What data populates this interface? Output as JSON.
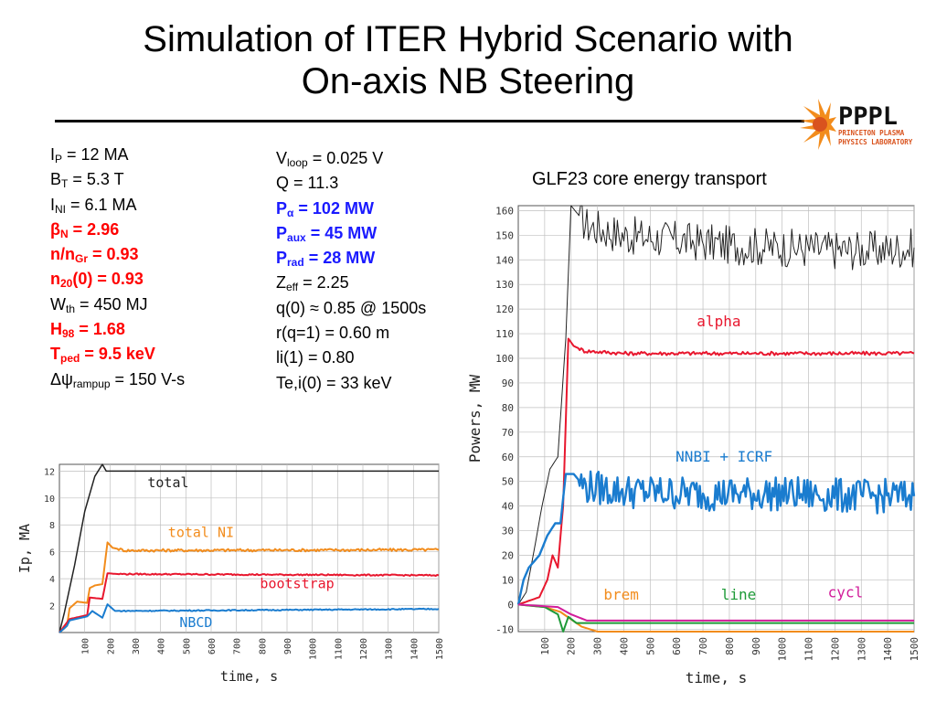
{
  "slide": {
    "title_line1": "Simulation of ITER Hybrid Scenario with",
    "title_line2": "On-axis NB Steering",
    "logo": {
      "text": "PPPL",
      "sub1": "PRINCETON PLASMA",
      "sub2": "PHYSICS LABORATORY"
    }
  },
  "params_left": [
    {
      "sym": "I",
      "sub": "P",
      "rest": " = 12 MA",
      "style": "normal"
    },
    {
      "sym": "B",
      "sub": "T",
      "rest": " = 5.3 T",
      "style": "normal"
    },
    {
      "sym": "I",
      "sub": "NI",
      "rest": " = 6.1 MA",
      "style": "normal"
    },
    {
      "sym": "β",
      "sub": "N",
      "rest": " = 2.96",
      "style": "red"
    },
    {
      "sym": "n/n",
      "sub": "Gr",
      "rest": " = 0.93",
      "style": "red"
    },
    {
      "sym": "n",
      "sub": "20",
      "rest": "(0) = 0.93",
      "style": "red"
    },
    {
      "sym": "W",
      "sub": "th",
      "rest": " = 450 MJ",
      "style": "normal"
    },
    {
      "sym": "H",
      "sub": "98",
      "rest": " = 1.68",
      "style": "red"
    },
    {
      "sym": "T",
      "sub": "ped",
      "rest": " = 9.5 keV",
      "style": "red"
    },
    {
      "sym": "Δψ",
      "sub": "rampup",
      "rest": " = 150 V-s",
      "style": "normal"
    }
  ],
  "params_right": [
    {
      "sym": "V",
      "sub": "loop",
      "rest": " = 0.025 V",
      "style": "normal"
    },
    {
      "sym": "Q = 11.3",
      "sub": "",
      "rest": "",
      "style": "normal"
    },
    {
      "sym": "P",
      "sub": "α",
      "rest": " = 102 MW",
      "style": "blue"
    },
    {
      "sym": "P",
      "sub": "aux",
      "rest": " = 45 MW",
      "style": "blue"
    },
    {
      "sym": "P",
      "sub": "rad",
      "rest": " = 28 MW",
      "style": "blue"
    },
    {
      "sym": "Z",
      "sub": "eff",
      "rest": " = 2.25",
      "style": "normal"
    },
    {
      "sym": "q(0) ≈ 0.85 @ 1500s",
      "sub": "",
      "rest": "",
      "style": "normal"
    },
    {
      "sym": "r(q=1) = 0.60 m",
      "sub": "",
      "rest": "",
      "style": "normal"
    },
    {
      "sym": "li(1) = 0.80",
      "sub": "",
      "rest": "",
      "style": "normal"
    },
    {
      "sym": "Te,i(0) = 33 keV",
      "sub": "",
      "rest": "",
      "style": "normal"
    }
  ],
  "colors": {
    "black": "#222222",
    "orange": "#f28c1c",
    "red": "#e8172e",
    "blue": "#1a7ccf",
    "green": "#1e9a38",
    "magenta": "#d21c9a",
    "grid": "#bfbfbf"
  },
  "chart_data": [
    {
      "type": "line",
      "title": "",
      "xlabel": "time, s",
      "ylabel": "Ip, MA",
      "xlim": [
        0,
        1500
      ],
      "ylim": [
        0,
        12.5
      ],
      "xticks": [
        100,
        200,
        300,
        400,
        500,
        600,
        700,
        800,
        900,
        1000,
        1100,
        1200,
        1300,
        1400,
        1500
      ],
      "yticks": [
        2,
        4,
        6,
        8,
        10,
        12
      ],
      "tick_labels_x": [
        "100",
        "200",
        "300",
        "400",
        "500",
        "600",
        "700",
        "800",
        "900",
        "1000",
        "1100",
        "1200",
        "1300",
        "1400",
        "1500"
      ],
      "tick_labels_y": [
        "2",
        "4",
        "6",
        "8",
        "10",
        "12"
      ],
      "series": [
        {
          "name": "total",
          "color": "#222222",
          "label_pos": [
            430,
            10.8
          ],
          "points": [
            [
              0,
              0
            ],
            [
              20,
              1.5
            ],
            [
              60,
              5
            ],
            [
              100,
              9
            ],
            [
              140,
              11.6
            ],
            [
              170,
              12.5
            ],
            [
              185,
              12.0
            ],
            [
              200,
              12.0
            ],
            [
              1500,
              12.0
            ]
          ]
        },
        {
          "name": "total NI",
          "color": "#f28c1c",
          "label_pos": [
            560,
            7.1
          ],
          "points": [
            [
              0,
              0
            ],
            [
              30,
              0.5
            ],
            [
              40,
              1.8
            ],
            [
              70,
              2.3
            ],
            [
              110,
              2.2
            ],
            [
              120,
              3.3
            ],
            [
              140,
              3.5
            ],
            [
              170,
              3.6
            ],
            [
              190,
              6.7
            ],
            [
              210,
              6.3
            ],
            [
              260,
              6.1
            ],
            [
              1500,
              6.15
            ]
          ]
        },
        {
          "name": "bootstrap",
          "color": "#e8172e",
          "label_pos": [
            940,
            3.3
          ],
          "points": [
            [
              0,
              0
            ],
            [
              40,
              1.0
            ],
            [
              110,
              1.3
            ],
            [
              120,
              2.6
            ],
            [
              170,
              2.5
            ],
            [
              190,
              4.4
            ],
            [
              230,
              4.35
            ],
            [
              1500,
              4.25
            ]
          ]
        },
        {
          "name": "NBCD",
          "color": "#1a7ccf",
          "label_pos": [
            540,
            0.4
          ],
          "points": [
            [
              0,
              0
            ],
            [
              30,
              0.5
            ],
            [
              40,
              0.9
            ],
            [
              110,
              1.2
            ],
            [
              130,
              1.6
            ],
            [
              170,
              1.1
            ],
            [
              190,
              2.1
            ],
            [
              220,
              1.6
            ],
            [
              1500,
              1.75
            ]
          ]
        }
      ]
    },
    {
      "type": "line",
      "title": "GLF23 core energy transport",
      "xlabel": "time, s",
      "ylabel": "Powers, MW",
      "xlim": [
        0,
        1500
      ],
      "ylim": [
        -11,
        162
      ],
      "xticks": [
        100,
        200,
        300,
        400,
        500,
        600,
        700,
        800,
        900,
        1000,
        1100,
        1200,
        1300,
        1400,
        1500
      ],
      "yticks": [
        -10,
        0,
        10,
        20,
        30,
        40,
        50,
        60,
        70,
        80,
        90,
        100,
        110,
        120,
        130,
        140,
        150,
        160
      ],
      "tick_labels_x": [
        "100",
        "200",
        "300",
        "400",
        "500",
        "600",
        "700",
        "800",
        "900",
        "1000",
        "1100",
        "1200",
        "1300",
        "1400",
        "1500"
      ],
      "tick_labels_y": [
        "-10",
        "0",
        "10",
        "20",
        "30",
        "40",
        "50",
        "60",
        "70",
        "80",
        "90",
        "100",
        "110",
        "120",
        "130",
        "140",
        "150",
        "160"
      ],
      "series": [
        {
          "name": "total",
          "color": "#222222",
          "label_pos": null,
          "points": [
            [
              0,
              0
            ],
            [
              30,
              5
            ],
            [
              60,
              22
            ],
            [
              90,
              40
            ],
            [
              120,
              55
            ],
            [
              150,
              60
            ],
            [
              180,
              108
            ],
            [
              200,
              162
            ],
            [
              230,
              158
            ],
            [
              260,
              154
            ],
            [
              400,
              150
            ],
            [
              600,
              148
            ],
            [
              800,
              146
            ],
            [
              1000,
              145
            ],
            [
              1200,
              144
            ],
            [
              1400,
              144
            ],
            [
              1500,
              145
            ]
          ]
        },
        {
          "name": "alpha",
          "color": "#e8172e",
          "label_pos": [
            760,
            113
          ],
          "points": [
            [
              0,
              0
            ],
            [
              80,
              3
            ],
            [
              110,
              10
            ],
            [
              130,
              20
            ],
            [
              150,
              15
            ],
            [
              170,
              40
            ],
            [
              190,
              108
            ],
            [
              210,
              105
            ],
            [
              250,
              103
            ],
            [
              400,
              102
            ],
            [
              1500,
              102
            ]
          ]
        },
        {
          "name": "NNBI + ICRF",
          "color": "#1a7ccf",
          "label_pos": [
            780,
            58
          ],
          "points": [
            [
              0,
              0
            ],
            [
              20,
              10
            ],
            [
              40,
              15
            ],
            [
              80,
              20
            ],
            [
              110,
              28
            ],
            [
              140,
              33
            ],
            [
              160,
              33
            ],
            [
              180,
              53
            ],
            [
              210,
              53
            ],
            [
              250,
              48
            ],
            [
              400,
              46
            ],
            [
              700,
              45
            ],
            [
              1000,
              45
            ],
            [
              1300,
              44
            ],
            [
              1500,
              44
            ]
          ]
        },
        {
          "name": "brem",
          "color": "#f28c1c",
          "label_pos": [
            390,
            2
          ],
          "points": [
            [
              0,
              0
            ],
            [
              100,
              -1
            ],
            [
              160,
              -3
            ],
            [
              200,
              -6
            ],
            [
              240,
              -9
            ],
            [
              300,
              -11
            ],
            [
              1500,
              -11
            ]
          ]
        },
        {
          "name": "line",
          "color": "#1e9a38",
          "label_pos": [
            835,
            2
          ],
          "points": [
            [
              0,
              0
            ],
            [
              100,
              -1
            ],
            [
              150,
              -4
            ],
            [
              170,
              -11
            ],
            [
              190,
              -5
            ],
            [
              220,
              -7.5
            ],
            [
              1500,
              -7.5
            ]
          ]
        },
        {
          "name": "cycl",
          "color": "#d21c9a",
          "label_pos": [
            1240,
            3
          ],
          "points": [
            [
              0,
              0
            ],
            [
              150,
              -1
            ],
            [
              200,
              -4
            ],
            [
              260,
              -6.5
            ],
            [
              1500,
              -6.5
            ]
          ]
        }
      ]
    }
  ]
}
